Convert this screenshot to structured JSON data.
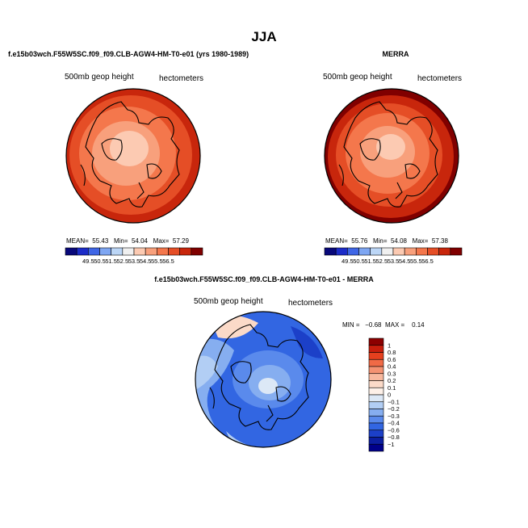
{
  "page_title": "JJA",
  "panels": {
    "case": {
      "title": "f.e15b03wch.F55W5SC.f09_f09.CLB-AGW4-HM-T0-e01 (yrs 1980-1989)",
      "variable": "500mb geop height",
      "units": "hectometers",
      "mean_label": "MEAN=",
      "mean": "55.43",
      "min_label": "Min=",
      "min": "54.04",
      "max_label": "Max=",
      "max": "57.29"
    },
    "obs": {
      "title": "MERRA",
      "variable": "500mb geop height",
      "units": "hectometers",
      "mean_label": "MEAN=",
      "mean": "55.76",
      "min_label": "Min=",
      "min": "54.08",
      "max_label": "Max=",
      "max": "57.38"
    },
    "diff": {
      "title": "f.e15b03wch.F55W5SC.f09_f09.CLB-AGW4-HM-T0-e01 - MERRA",
      "variable": "500mb geop height",
      "units": "hectometers",
      "min_label": "MIN =",
      "min": "−0.68",
      "max_label": "MAX =",
      "max": "0.14"
    }
  },
  "chart_data": [
    {
      "type": "heatmap",
      "projection": "north polar stereographic",
      "title": "f.e15b03wch.F55W5SC.f09_f09.CLB-AGW4-HM-T0-e01 (yrs 1980-1989)",
      "colorbar_levels": [
        "49.5",
        "50.5",
        "51.5",
        "52.5",
        "53.5",
        "54.5",
        "55.5",
        "56.5"
      ],
      "colorbar_colors": [
        "#08087a",
        "#1c2cc8",
        "#3f66e6",
        "#7ea6f2",
        "#bcd6f6",
        "#f0f0f0",
        "#fccab2",
        "#f8a07c",
        "#f4774c",
        "#e54e26",
        "#c8260c",
        "#800000"
      ],
      "stats": {
        "mean": 55.43,
        "min": 54.04,
        "max": 57.29
      }
    },
    {
      "type": "heatmap",
      "projection": "north polar stereographic",
      "title": "MERRA",
      "colorbar_levels": [
        "49.5",
        "50.5",
        "51.5",
        "52.5",
        "53.5",
        "54.5",
        "55.5",
        "56.5"
      ],
      "colorbar_colors": [
        "#08087a",
        "#1c2cc8",
        "#3f66e6",
        "#7ea6f2",
        "#bcd6f6",
        "#f0f0f0",
        "#fccab2",
        "#f8a07c",
        "#f4774c",
        "#e54e26",
        "#c8260c",
        "#800000"
      ],
      "stats": {
        "mean": 55.76,
        "min": 54.08,
        "max": 57.38
      }
    },
    {
      "type": "heatmap",
      "projection": "north polar stereographic",
      "title": "f.e15b03wch.F55W5SC.f09_f09.CLB-AGW4-HM-T0-e01 - MERRA",
      "colorbar_levels": [
        "1",
        "0.8",
        "0.6",
        "0.4",
        "0.3",
        "0.2",
        "0.1",
        "0",
        "−0.1",
        "−0.2",
        "−0.3",
        "−0.4",
        "−0.6",
        "−0.8",
        "−1"
      ],
      "colorbar_colors": [
        "#8c0000",
        "#c81e0c",
        "#e6401e",
        "#f06a46",
        "#f49272",
        "#f8b89e",
        "#fbdac8",
        "#fdf0e8",
        "#dce8f6",
        "#b2cef4",
        "#86aef0",
        "#5a8aec",
        "#3266e2",
        "#1c40c8",
        "#0c1ea0",
        "#00008a"
      ],
      "stats": {
        "min": -0.68,
        "max": 0.14
      }
    }
  ]
}
